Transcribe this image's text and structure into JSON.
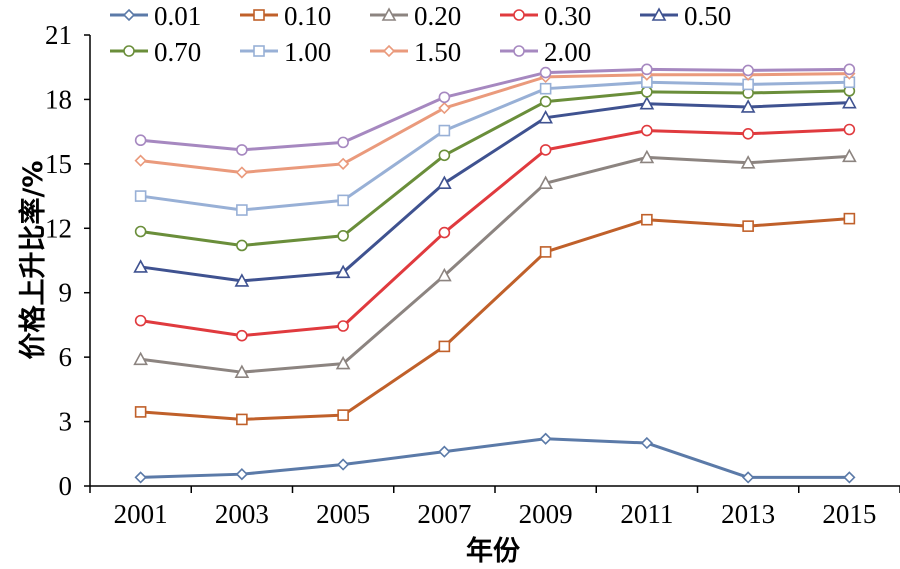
{
  "chart_data": {
    "type": "line",
    "title": "",
    "xlabel": "年份",
    "ylabel": "价格上升比率/%",
    "ylim": [
      0,
      21
    ],
    "yticks": [
      0,
      3,
      6,
      9,
      12,
      15,
      18,
      21
    ],
    "grid": false,
    "legend_position": "top",
    "categories": [
      "2001",
      "2003",
      "2005",
      "2007",
      "2009",
      "2011",
      "2013",
      "2015"
    ],
    "series": [
      {
        "name": "0.01",
        "color": "#5b7aa8",
        "marker": "diamond",
        "values": [
          0.4,
          0.55,
          1.0,
          1.6,
          2.2,
          2.0,
          0.4,
          0.4
        ]
      },
      {
        "name": "0.10",
        "color": "#c0602a",
        "marker": "square",
        "values": [
          3.45,
          3.1,
          3.3,
          6.5,
          10.9,
          12.4,
          12.1,
          12.45
        ]
      },
      {
        "name": "0.20",
        "color": "#8c8480",
        "marker": "triangle",
        "values": [
          5.9,
          5.3,
          5.7,
          9.8,
          14.1,
          15.3,
          15.05,
          15.35
        ]
      },
      {
        "name": "0.30",
        "color": "#e03a3e",
        "marker": "circle",
        "values": [
          7.7,
          7.0,
          7.45,
          11.8,
          15.65,
          16.55,
          16.4,
          16.6
        ]
      },
      {
        "name": "0.50",
        "color": "#3f5290",
        "marker": "triangle",
        "values": [
          10.2,
          9.55,
          9.95,
          14.1,
          17.15,
          17.8,
          17.65,
          17.85
        ]
      },
      {
        "name": "0.70",
        "color": "#6a8e3a",
        "marker": "circle",
        "values": [
          11.85,
          11.2,
          11.65,
          15.4,
          17.9,
          18.35,
          18.3,
          18.4
        ]
      },
      {
        "name": "1.00",
        "color": "#98b0d6",
        "marker": "square",
        "values": [
          13.5,
          12.85,
          13.3,
          16.55,
          18.5,
          18.8,
          18.7,
          18.8
        ]
      },
      {
        "name": "1.50",
        "color": "#ea9a7c",
        "marker": "diamond",
        "values": [
          15.15,
          14.6,
          15.0,
          17.6,
          19.05,
          19.15,
          19.15,
          19.2
        ]
      },
      {
        "name": "2.00",
        "color": "#a688c0",
        "marker": "circle",
        "values": [
          16.1,
          15.65,
          16.0,
          18.1,
          19.25,
          19.4,
          19.35,
          19.4
        ]
      }
    ]
  }
}
